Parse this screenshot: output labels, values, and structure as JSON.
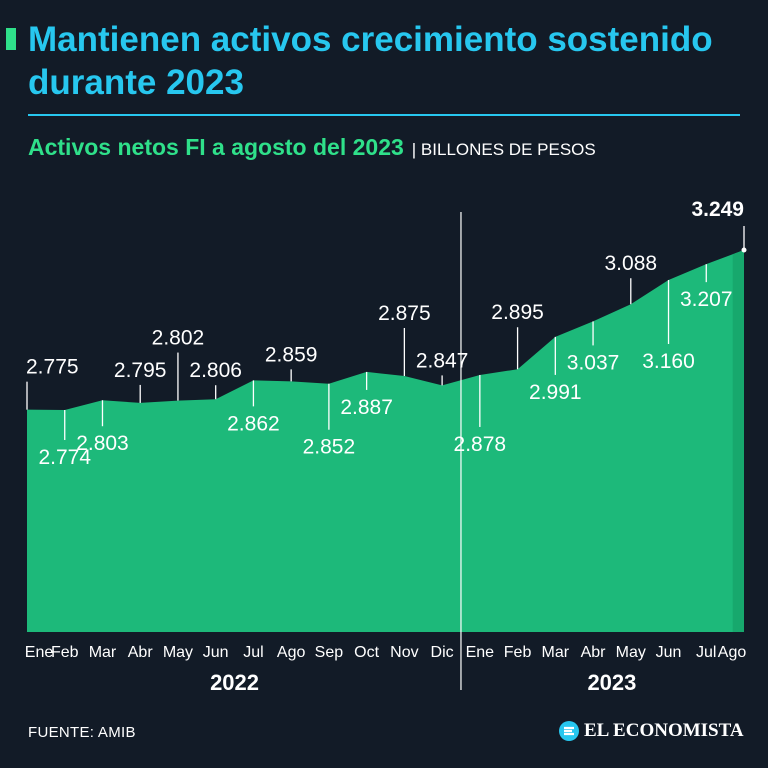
{
  "header": {
    "title": "Mantienen activos crecimiento sostenido durante 2023",
    "subtitle": "Activos netos FI a agosto del 2023",
    "unit": "| BILLONES DE PESOS"
  },
  "footer": {
    "source": "FUENTE: AMIB",
    "brand": "EL ECONOMISTA"
  },
  "colors": {
    "background": "#121b27",
    "title": "#27c7ef",
    "accent": "#2fe08a",
    "area": "#1db97a",
    "area_highlight": "#17a86d"
  },
  "chart_data": {
    "type": "area",
    "title": "Activos netos FI a agosto del 2023",
    "ylabel": "Billones de pesos",
    "ylim": [
      2.4,
      3.3
    ],
    "categories": [
      "Ene",
      "Feb",
      "Mar",
      "Abr",
      "May",
      "Jun",
      "Jul",
      "Ago",
      "Sep",
      "Oct",
      "Nov",
      "Dic",
      "Ene",
      "Feb",
      "Mar",
      "Abr",
      "May",
      "Jun",
      "Jul",
      "Ago"
    ],
    "year_groups": [
      {
        "label": "2022",
        "count": 12
      },
      {
        "label": "2023",
        "count": 8
      }
    ],
    "series": [
      {
        "name": "Activos netos",
        "values": [
          2.775,
          2.774,
          2.803,
          2.795,
          2.802,
          2.806,
          2.862,
          2.859,
          2.852,
          2.887,
          2.875,
          2.847,
          2.878,
          2.895,
          2.991,
          3.037,
          3.088,
          3.16,
          3.207,
          3.249
        ],
        "labels": [
          "2.775",
          "2.774",
          "2.803",
          "2.795",
          "2.802",
          "2.806",
          "2.862",
          "2.859",
          "2.852",
          "2.887",
          "2.875",
          "2.847",
          "2.878",
          "2.895",
          "2.991",
          "3.037",
          "3.088",
          "3.160",
          "3.207",
          "3.249"
        ]
      }
    ],
    "highlight_last": true
  }
}
